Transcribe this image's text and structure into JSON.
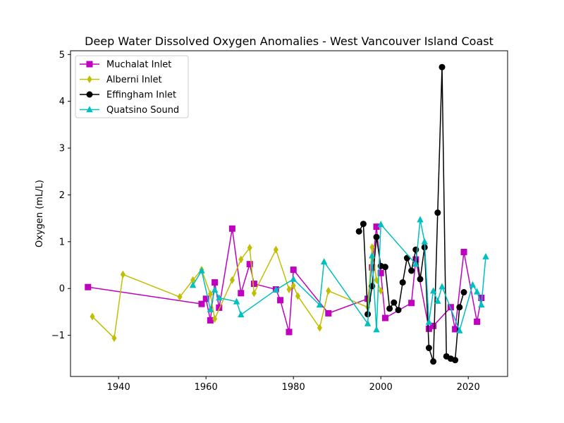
{
  "chart_data": {
    "type": "line",
    "title": "Deep Water Dissolved Oxygen Anomalies - West Vancouver Island Coast",
    "xlabel": "",
    "ylabel": "Oxygen (mL/L)",
    "xlim": [
      1929,
      2029
    ],
    "ylim": [
      -1.88,
      5.08
    ],
    "xticks": [
      1940,
      1960,
      1980,
      2000,
      2020
    ],
    "yticks": [
      -1,
      0,
      1,
      2,
      3,
      4,
      5
    ],
    "grid": false,
    "legend_position": "top-left",
    "series": [
      {
        "name": "Muchalat Inlet",
        "color": "#bf00bf",
        "marker": "square",
        "points": [
          [
            1933,
            0.03
          ],
          [
            1959,
            -0.33
          ],
          [
            1960,
            -0.22
          ],
          [
            1961,
            -0.68
          ],
          [
            1962,
            0.13
          ],
          [
            1963,
            -0.41
          ],
          [
            1966,
            1.28
          ],
          [
            1968,
            -0.1
          ],
          [
            1970,
            0.52
          ],
          [
            1971,
            0.1
          ],
          [
            1976,
            -0.02
          ],
          [
            1977,
            -0.25
          ],
          [
            1979,
            -0.93
          ],
          [
            1980,
            0.4
          ],
          [
            1988,
            -0.53
          ],
          [
            1997,
            -0.22
          ],
          [
            1998,
            0.45
          ],
          [
            1999,
            1.32
          ],
          [
            2000,
            0.33
          ],
          [
            2001,
            -0.63
          ],
          [
            2007,
            -0.31
          ],
          [
            2008,
            0.62
          ],
          [
            2011,
            -0.86
          ],
          [
            2012,
            -0.8
          ],
          [
            2016,
            -0.4
          ],
          [
            2017,
            -0.87
          ],
          [
            2019,
            0.78
          ],
          [
            2022,
            -0.71
          ],
          [
            2023,
            -0.2
          ]
        ]
      },
      {
        "name": "Alberni Inlet",
        "color": "#bfbf00",
        "marker": "diamond",
        "points": [
          [
            1934,
            -0.6
          ],
          [
            1939,
            -1.06
          ],
          [
            1941,
            0.3
          ],
          [
            1954,
            -0.18
          ],
          [
            1957,
            0.18
          ],
          [
            1959,
            0.4
          ],
          [
            1961,
            -0.12
          ],
          [
            1962,
            -0.65
          ],
          [
            1966,
            0.18
          ],
          [
            1968,
            0.62
          ],
          [
            1970,
            0.87
          ],
          [
            1971,
            -0.1
          ],
          [
            1976,
            0.83
          ],
          [
            1979,
            -0.02
          ],
          [
            1980,
            0.06
          ],
          [
            1981,
            -0.16
          ],
          [
            1986,
            -0.84
          ],
          [
            1988,
            -0.05
          ],
          [
            1997,
            -0.4
          ],
          [
            1998,
            0.88
          ],
          [
            1999,
            0.18
          ],
          [
            2000,
            -0.05
          ]
        ]
      },
      {
        "name": "Effingham Inlet",
        "color": "#000000",
        "marker": "circle",
        "points": [
          [
            1995,
            1.22
          ],
          [
            1996,
            1.38
          ],
          [
            1997,
            -0.55
          ],
          [
            1998,
            0.05
          ],
          [
            1999,
            1.1
          ],
          [
            2000,
            0.48
          ],
          [
            2001,
            0.46
          ],
          [
            2002,
            -0.43
          ],
          [
            2003,
            -0.3
          ],
          [
            2004,
            -0.46
          ],
          [
            2005,
            0.13
          ],
          [
            2006,
            0.65
          ],
          [
            2007,
            0.38
          ],
          [
            2008,
            0.83
          ],
          [
            2009,
            0.2
          ],
          [
            2010,
            0.88
          ],
          [
            2011,
            -1.27
          ],
          [
            2012,
            -1.56
          ],
          [
            2013,
            1.62
          ],
          [
            2014,
            4.73
          ],
          [
            2015,
            -1.45
          ],
          [
            2016,
            -1.5
          ],
          [
            2017,
            -1.53
          ],
          [
            2018,
            -0.4
          ],
          [
            2019,
            -0.08
          ]
        ]
      },
      {
        "name": "Quatsino Sound",
        "color": "#00bfbf",
        "marker": "triangle",
        "points": [
          [
            1957,
            0.07
          ],
          [
            1959,
            0.38
          ],
          [
            1961,
            -0.45
          ],
          [
            1962,
            -0.03
          ],
          [
            1963,
            -0.2
          ],
          [
            1967,
            -0.28
          ],
          [
            1968,
            -0.56
          ],
          [
            1976,
            -0.03
          ],
          [
            1980,
            0.2
          ],
          [
            1986,
            -0.35
          ],
          [
            1987,
            0.57
          ],
          [
            1997,
            -0.75
          ],
          [
            1998,
            0.7
          ],
          [
            1999,
            -0.88
          ],
          [
            2000,
            1.37
          ],
          [
            2008,
            0.52
          ],
          [
            2009,
            1.47
          ],
          [
            2010,
            1.0
          ],
          [
            2011,
            -0.72
          ],
          [
            2012,
            -0.05
          ],
          [
            2013,
            -0.27
          ],
          [
            2014,
            0.04
          ],
          [
            2018,
            -0.9
          ],
          [
            2021,
            0.08
          ],
          [
            2022,
            -0.07
          ],
          [
            2023,
            -0.35
          ],
          [
            2024,
            0.68
          ]
        ]
      }
    ]
  }
}
